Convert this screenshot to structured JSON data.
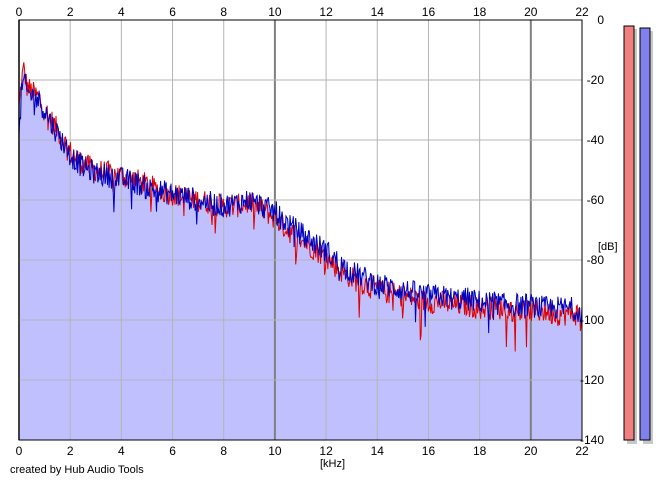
{
  "chart_data": {
    "type": "line",
    "xlabel": "[kHz]",
    "ylabel": "[dB]",
    "xlim": [
      0,
      22
    ],
    "ylim": [
      -140,
      0
    ],
    "x_ticks": [
      0,
      2,
      4,
      6,
      8,
      10,
      12,
      14,
      16,
      18,
      20,
      22
    ],
    "y_ticks": [
      0,
      -20,
      -40,
      -60,
      -80,
      -100,
      -120,
      -140
    ],
    "grid": true,
    "series": [
      {
        "color": "#e00000",
        "x": [
          0,
          0.1,
          0.2,
          0.3,
          0.5,
          0.8,
          1.0,
          1.3,
          1.6,
          2.0,
          2.5,
          3.0,
          3.5,
          4.0,
          4.5,
          5.0,
          5.5,
          6.0,
          6.5,
          7.0,
          7.5,
          8.0,
          8.5,
          9.0,
          9.5,
          10.0,
          10.5,
          11.0,
          11.5,
          12.0,
          12.5,
          13.0,
          13.5,
          14.0,
          14.5,
          15.0,
          15.5,
          16.0,
          16.5,
          17.0,
          17.5,
          18.0,
          18.5,
          19.0,
          19.5,
          20.0,
          20.5,
          21.0,
          21.5,
          22.0
        ],
        "values": [
          -30,
          -20,
          -16,
          -22,
          -24,
          -26,
          -30,
          -34,
          -38,
          -44,
          -48,
          -50,
          -51,
          -52,
          -53,
          -55,
          -57,
          -58,
          -59,
          -60,
          -61,
          -62,
          -62,
          -61,
          -63,
          -66,
          -70,
          -73,
          -76,
          -79,
          -83,
          -86,
          -88,
          -90,
          -91,
          -92,
          -93,
          -94,
          -94,
          -95,
          -95,
          -96,
          -96,
          -96,
          -97,
          -97,
          -97,
          -98,
          -98,
          -98
        ]
      },
      {
        "color": "#0000c0",
        "x": [
          0,
          0.1,
          0.2,
          0.3,
          0.5,
          0.8,
          1.0,
          1.3,
          1.6,
          2.0,
          2.5,
          3.0,
          3.5,
          4.0,
          4.5,
          5.0,
          5.5,
          6.0,
          6.5,
          7.0,
          7.5,
          8.0,
          8.5,
          9.0,
          9.5,
          10.0,
          10.5,
          11.0,
          11.5,
          12.0,
          12.5,
          13.0,
          13.5,
          14.0,
          14.5,
          15.0,
          15.5,
          16.0,
          16.5,
          17.0,
          17.5,
          18.0,
          18.5,
          19.0,
          19.5,
          20.0,
          20.5,
          21.0,
          21.5,
          22.0
        ],
        "values": [
          -40,
          -24,
          -20,
          -24,
          -25,
          -27,
          -30,
          -35,
          -39,
          -45,
          -49,
          -51,
          -52,
          -53,
          -54,
          -56,
          -57,
          -58,
          -59,
          -60,
          -61,
          -62,
          -61,
          -60,
          -62,
          -64,
          -68,
          -71,
          -74,
          -77,
          -81,
          -84,
          -86,
          -88,
          -89,
          -90,
          -91,
          -92,
          -92,
          -93,
          -93,
          -94,
          -94,
          -95,
          -95,
          -95,
          -96,
          -96,
          -96,
          -97
        ]
      }
    ],
    "level_meters": [
      {
        "color": "#f08080"
      },
      {
        "color": "#8080ee"
      }
    ]
  },
  "footer": {
    "credit": "created by Hub Audio Tools"
  },
  "colors": {
    "fill": "#c0c0ff",
    "grid": "#b4b4b4",
    "grid_major": "#808080"
  }
}
